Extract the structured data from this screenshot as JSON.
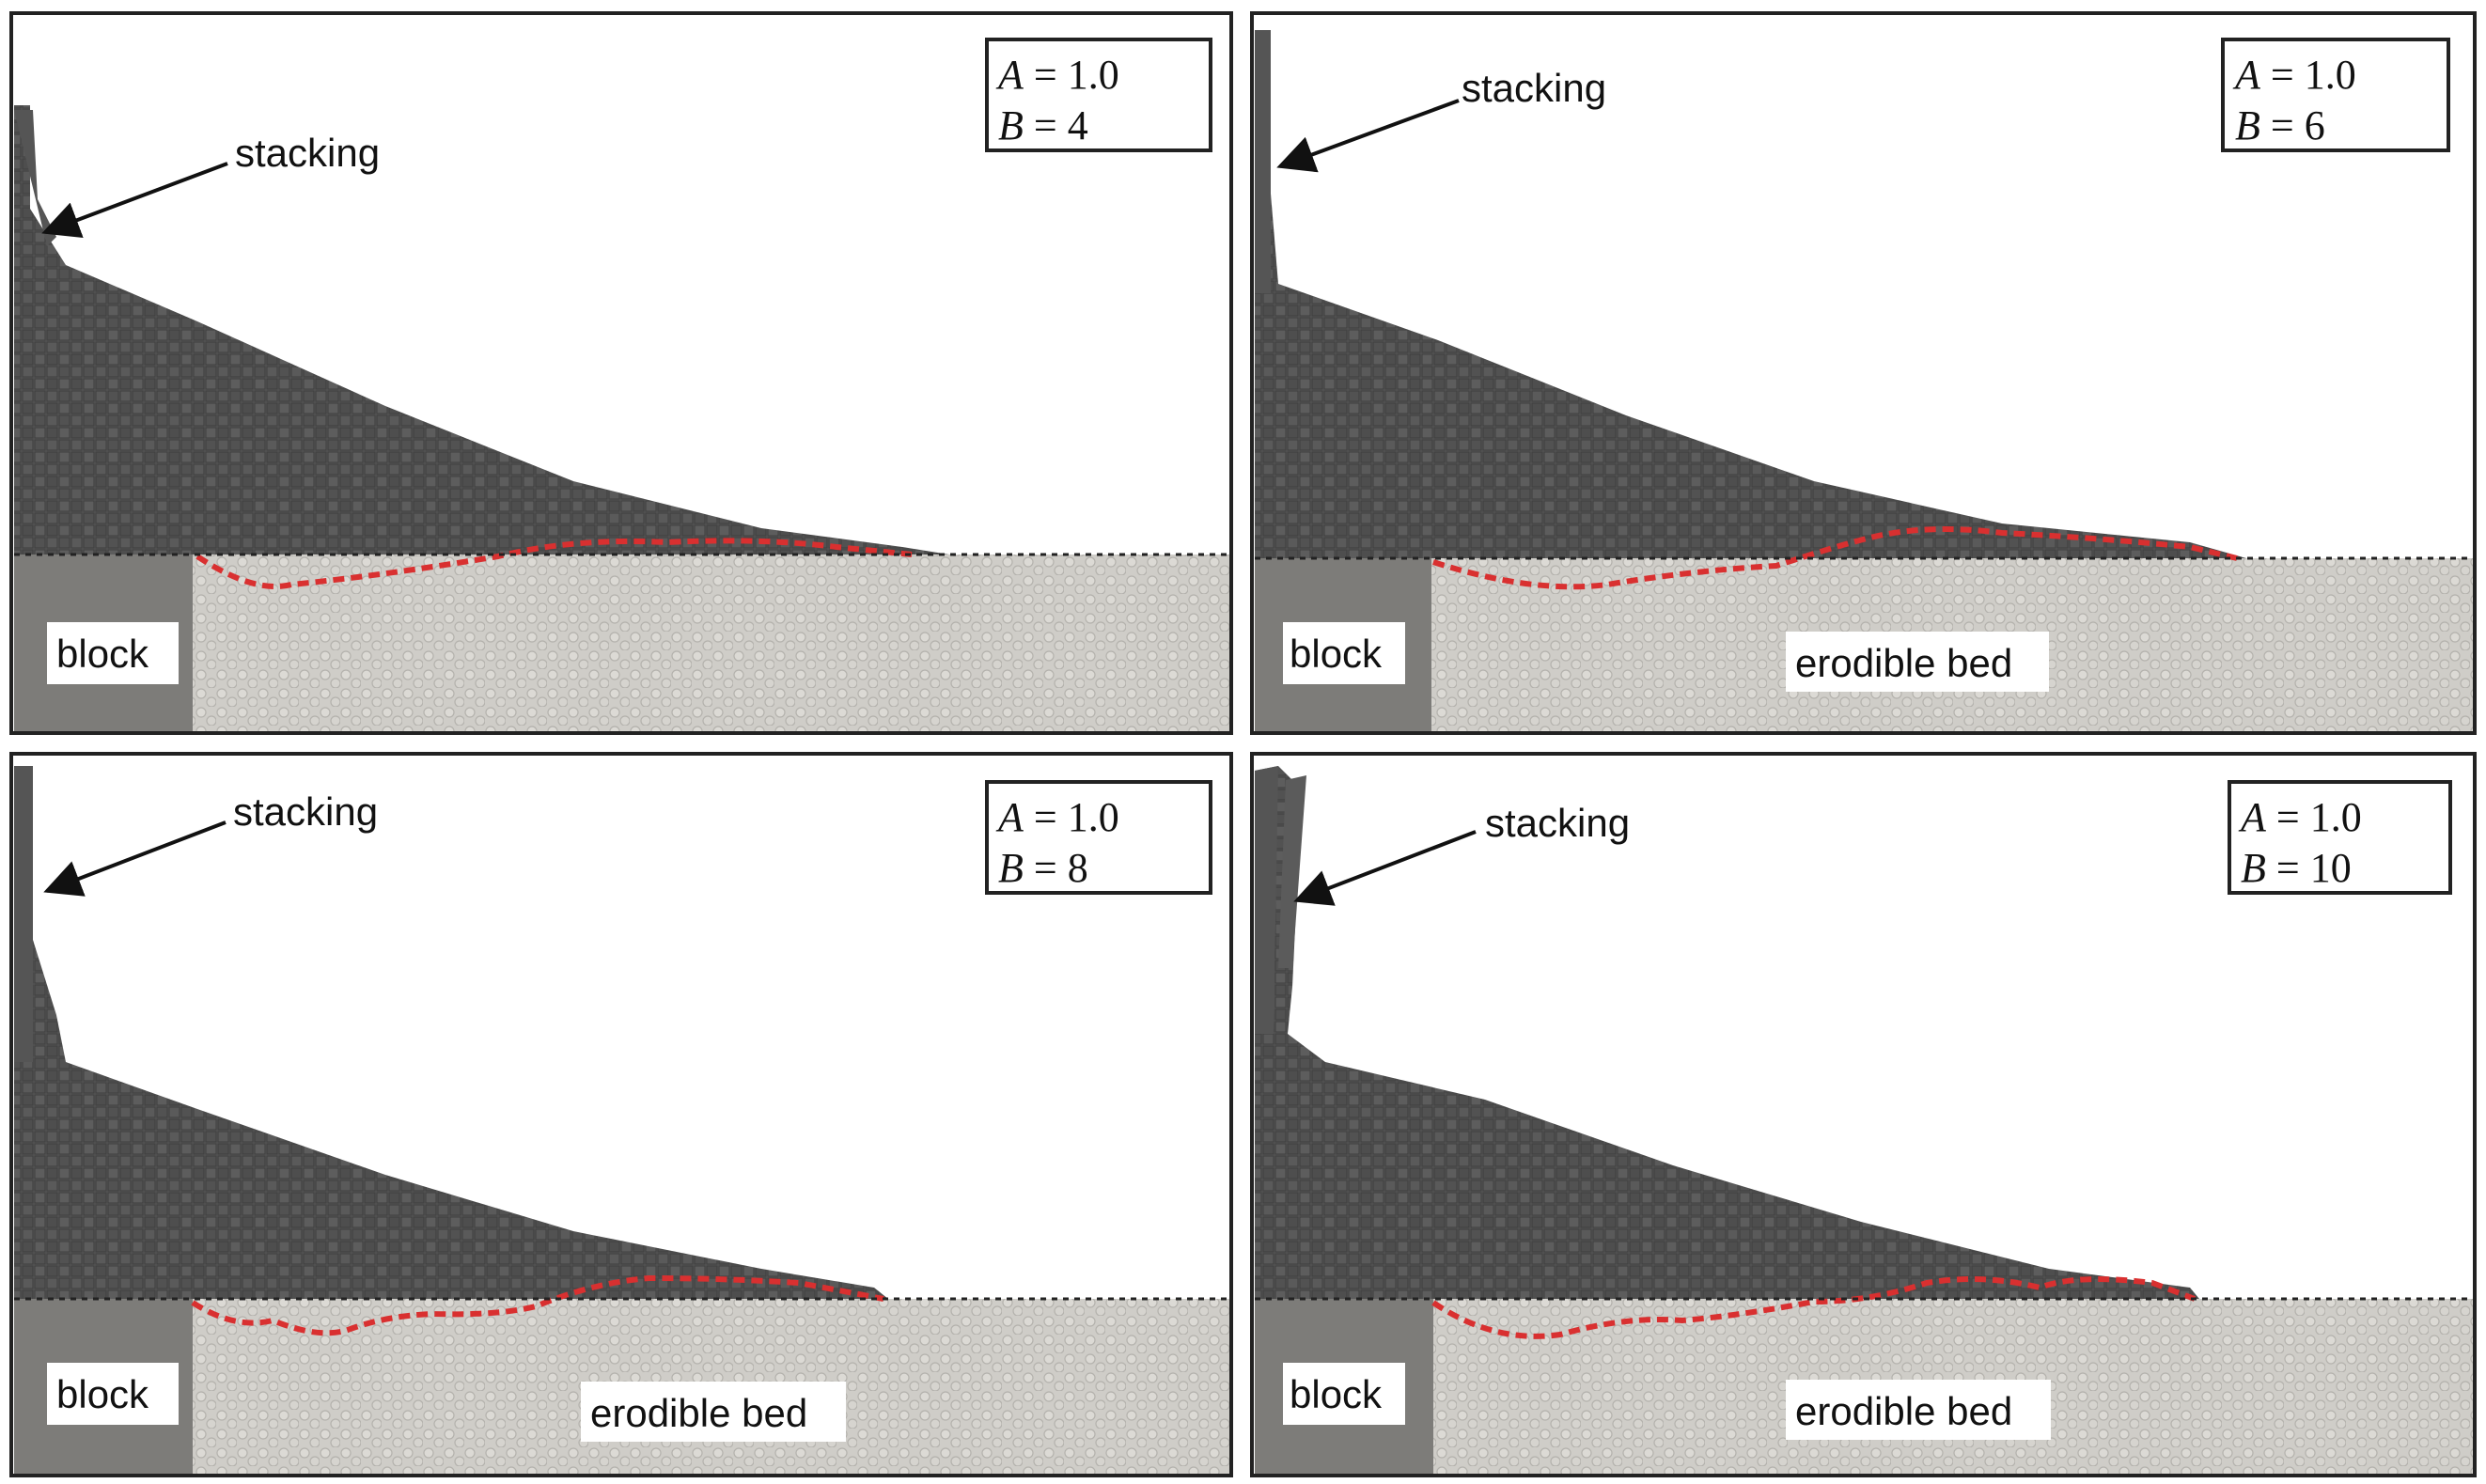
{
  "colors": {
    "frame": "#222222",
    "pile": "#555555",
    "pile_edge": "#3a3a3a",
    "bed": "#cfcdc8",
    "bed_grain": "#b4b2ad",
    "block": "#7d7c79",
    "interface": "#d93030",
    "reference_line": "#222222"
  },
  "icons": {
    "arrow": "arrow-icon"
  },
  "panels": [
    {
      "id": "p1",
      "stacking_label": "stacking",
      "block_label": "block",
      "bed_label": "",
      "param_A_sym": "A",
      "param_A_val": " = 1.0",
      "param_B_sym": "B",
      "param_B_val": " = 4"
    },
    {
      "id": "p2",
      "stacking_label": "stacking",
      "block_label": "block",
      "bed_label": "erodible bed",
      "param_A_sym": "A",
      "param_A_val": " = 1.0",
      "param_B_sym": "B",
      "param_B_val": " = 6"
    },
    {
      "id": "p3",
      "stacking_label": "stacking",
      "block_label": "block",
      "bed_label": "erodible bed",
      "param_A_sym": "A",
      "param_A_val": " = 1.0",
      "param_B_sym": "B",
      "param_B_val": " = 8"
    },
    {
      "id": "p4",
      "stacking_label": "stacking",
      "block_label": "block",
      "bed_label": "erodible bed",
      "param_A_sym": "A",
      "param_A_val": " = 1.0",
      "param_B_sym": "B",
      "param_B_val": " = 10"
    }
  ]
}
